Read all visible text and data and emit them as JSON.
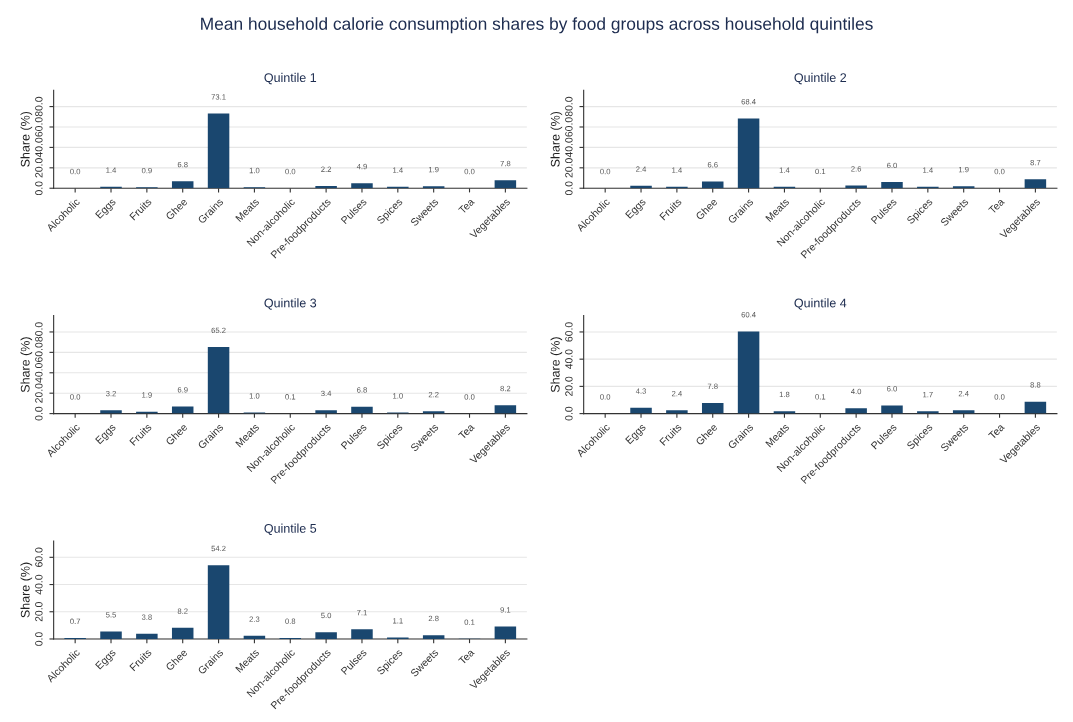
{
  "chart_data": [
    {
      "type": "bar",
      "title": "Quintile 1",
      "ylabel": "Share (%)",
      "annotations": [
        "Mean household calorie consumption shares by food groups across household quintiles"
      ],
      "categories": [
        "Alcoholic",
        "Eggs",
        "Fruits",
        "Ghee",
        "Grains",
        "Meats",
        "Non-alcoholic",
        "Pre-foodproducts",
        "Pulses",
        "Spices",
        "Sweets",
        "Tea",
        "Vegetables"
      ],
      "values": [
        0.0,
        1.4,
        0.9,
        6.8,
        73.1,
        1.0,
        0.0,
        2.2,
        4.9,
        1.4,
        1.9,
        0.0,
        7.8
      ],
      "value_labels": [
        "0.0",
        "1.4",
        "0.9",
        "6.8",
        "73.1",
        "1.0",
        "0.0",
        "2.2",
        "4.9",
        "1.4",
        "1.9",
        "0.0",
        "7.8"
      ],
      "color": "#1a476f",
      "grid": "y",
      "ylim": [
        0,
        96
      ],
      "yticks": [
        {
          "value": 0,
          "label": "0.0"
        },
        {
          "value": 20,
          "label": "20.0"
        },
        {
          "value": 40,
          "label": "40.0"
        },
        {
          "value": 60,
          "label": "60.0"
        },
        {
          "value": 80,
          "label": "80.0"
        }
      ]
    },
    {
      "type": "bar",
      "title": "Quintile 2",
      "ylabel": "Share (%)",
      "categories": [
        "Alcoholic",
        "Eggs",
        "Fruits",
        "Ghee",
        "Grains",
        "Meats",
        "Non-alcoholic",
        "Pre-foodproducts",
        "Pulses",
        "Spices",
        "Sweets",
        "Tea",
        "Vegetables"
      ],
      "values": [
        0.0,
        2.4,
        1.4,
        6.6,
        68.4,
        1.4,
        0.1,
        2.6,
        6.0,
        1.4,
        1.9,
        0.0,
        8.7
      ],
      "value_labels": [
        "0.0",
        "2.4",
        "1.4",
        "6.6",
        "68.4",
        "1.4",
        "0.1",
        "2.6",
        "6.0",
        "1.4",
        "1.9",
        "0.0",
        "8.7"
      ],
      "color": "#1a476f",
      "grid": "y",
      "ylim": [
        0,
        96
      ],
      "yticks": [
        {
          "value": 0,
          "label": "0.0"
        },
        {
          "value": 20,
          "label": "20.0"
        },
        {
          "value": 40,
          "label": "40.0"
        },
        {
          "value": 60,
          "label": "60.0"
        },
        {
          "value": 80,
          "label": "80.0"
        }
      ]
    },
    {
      "type": "bar",
      "title": "Quintile 3",
      "ylabel": "Share (%)",
      "categories": [
        "Alcoholic",
        "Eggs",
        "Fruits",
        "Ghee",
        "Grains",
        "Meats",
        "Non-alcoholic",
        "Pre-foodproducts",
        "Pulses",
        "Spices",
        "Sweets",
        "Tea",
        "Vegetables"
      ],
      "values": [
        0.0,
        3.2,
        1.9,
        6.9,
        65.2,
        1.0,
        0.1,
        3.4,
        6.8,
        1.0,
        2.2,
        0.0,
        8.2
      ],
      "value_labels": [
        "0.0",
        "3.2",
        "1.9",
        "6.9",
        "65.2",
        "1.0",
        "0.1",
        "3.4",
        "6.8",
        "1.0",
        "2.2",
        "0.0",
        "8.2"
      ],
      "color": "#1a476f",
      "grid": "y",
      "ylim": [
        0,
        96
      ],
      "yticks": [
        {
          "value": 0,
          "label": "0.0"
        },
        {
          "value": 20,
          "label": "20.0"
        },
        {
          "value": 40,
          "label": "40.0"
        },
        {
          "value": 60,
          "label": "60.0"
        },
        {
          "value": 80,
          "label": "80.0"
        }
      ]
    },
    {
      "type": "bar",
      "title": "Quintile 4",
      "ylabel": "Share (%)",
      "categories": [
        "Alcoholic",
        "Eggs",
        "Fruits",
        "Ghee",
        "Grains",
        "Meats",
        "Non-alcoholic",
        "Pre-foodproducts",
        "Pulses",
        "Spices",
        "Sweets",
        "Tea",
        "Vegetables"
      ],
      "values": [
        0.0,
        4.3,
        2.4,
        7.8,
        60.4,
        1.8,
        0.1,
        4.0,
        6.0,
        1.7,
        2.4,
        0.0,
        8.8
      ],
      "value_labels": [
        "0.0",
        "4.3",
        "2.4",
        "7.8",
        "60.4",
        "1.8",
        "0.1",
        "4.0",
        "6.0",
        "1.7",
        "2.4",
        "0.0",
        "8.8"
      ],
      "color": "#1a476f",
      "grid": "y",
      "ylim": [
        0,
        72
      ],
      "yticks": [
        {
          "value": 0,
          "label": "0.0"
        },
        {
          "value": 20,
          "label": "20.0"
        },
        {
          "value": 40,
          "label": "40.0"
        },
        {
          "value": 60,
          "label": "60.0"
        }
      ]
    },
    {
      "type": "bar",
      "title": "Quintile 5",
      "ylabel": "Share (%)",
      "categories": [
        "Alcoholic",
        "Eggs",
        "Fruits",
        "Ghee",
        "Grains",
        "Meats",
        "Non-alcoholic",
        "Pre-foodproducts",
        "Pulses",
        "Spices",
        "Sweets",
        "Tea",
        "Vegetables"
      ],
      "values": [
        0.7,
        5.5,
        3.8,
        8.2,
        54.2,
        2.3,
        0.8,
        5.0,
        7.1,
        1.1,
        2.8,
        0.1,
        9.1
      ],
      "value_labels": [
        "0.7",
        "5.5",
        "3.8",
        "8.2",
        "54.2",
        "2.3",
        "0.8",
        "5.0",
        "7.1",
        "1.1",
        "2.8",
        "0.1",
        "9.1"
      ],
      "color": "#1a476f",
      "grid": "y",
      "ylim": [
        0,
        72
      ],
      "yticks": [
        {
          "value": 0,
          "label": "0.0"
        },
        {
          "value": 20,
          "label": "20.0"
        },
        {
          "value": 40,
          "label": "40.0"
        },
        {
          "value": 60,
          "label": "60.0"
        }
      ]
    }
  ]
}
